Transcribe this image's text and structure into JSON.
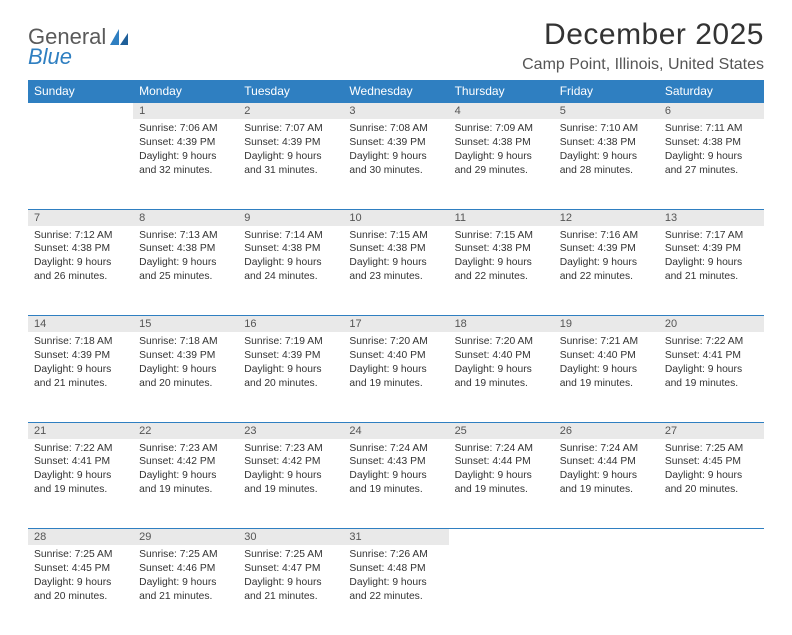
{
  "logo": {
    "word1": "General",
    "word2": "Blue"
  },
  "title": "December 2025",
  "location": "Camp Point, Illinois, United States",
  "header_bg": "#2f7fc1",
  "daynum_bg": "#e9e9e9",
  "border_color": "#2f7fc1",
  "days_of_week": [
    "Sunday",
    "Monday",
    "Tuesday",
    "Wednesday",
    "Thursday",
    "Friday",
    "Saturday"
  ],
  "first_weekday_index": 1,
  "days": [
    {
      "n": 1,
      "sr": "7:06 AM",
      "ss": "4:39 PM",
      "dl": "9 hours and 32 minutes."
    },
    {
      "n": 2,
      "sr": "7:07 AM",
      "ss": "4:39 PM",
      "dl": "9 hours and 31 minutes."
    },
    {
      "n": 3,
      "sr": "7:08 AM",
      "ss": "4:39 PM",
      "dl": "9 hours and 30 minutes."
    },
    {
      "n": 4,
      "sr": "7:09 AM",
      "ss": "4:38 PM",
      "dl": "9 hours and 29 minutes."
    },
    {
      "n": 5,
      "sr": "7:10 AM",
      "ss": "4:38 PM",
      "dl": "9 hours and 28 minutes."
    },
    {
      "n": 6,
      "sr": "7:11 AM",
      "ss": "4:38 PM",
      "dl": "9 hours and 27 minutes."
    },
    {
      "n": 7,
      "sr": "7:12 AM",
      "ss": "4:38 PM",
      "dl": "9 hours and 26 minutes."
    },
    {
      "n": 8,
      "sr": "7:13 AM",
      "ss": "4:38 PM",
      "dl": "9 hours and 25 minutes."
    },
    {
      "n": 9,
      "sr": "7:14 AM",
      "ss": "4:38 PM",
      "dl": "9 hours and 24 minutes."
    },
    {
      "n": 10,
      "sr": "7:15 AM",
      "ss": "4:38 PM",
      "dl": "9 hours and 23 minutes."
    },
    {
      "n": 11,
      "sr": "7:15 AM",
      "ss": "4:38 PM",
      "dl": "9 hours and 22 minutes."
    },
    {
      "n": 12,
      "sr": "7:16 AM",
      "ss": "4:39 PM",
      "dl": "9 hours and 22 minutes."
    },
    {
      "n": 13,
      "sr": "7:17 AM",
      "ss": "4:39 PM",
      "dl": "9 hours and 21 minutes."
    },
    {
      "n": 14,
      "sr": "7:18 AM",
      "ss": "4:39 PM",
      "dl": "9 hours and 21 minutes."
    },
    {
      "n": 15,
      "sr": "7:18 AM",
      "ss": "4:39 PM",
      "dl": "9 hours and 20 minutes."
    },
    {
      "n": 16,
      "sr": "7:19 AM",
      "ss": "4:39 PM",
      "dl": "9 hours and 20 minutes."
    },
    {
      "n": 17,
      "sr": "7:20 AM",
      "ss": "4:40 PM",
      "dl": "9 hours and 19 minutes."
    },
    {
      "n": 18,
      "sr": "7:20 AM",
      "ss": "4:40 PM",
      "dl": "9 hours and 19 minutes."
    },
    {
      "n": 19,
      "sr": "7:21 AM",
      "ss": "4:40 PM",
      "dl": "9 hours and 19 minutes."
    },
    {
      "n": 20,
      "sr": "7:22 AM",
      "ss": "4:41 PM",
      "dl": "9 hours and 19 minutes."
    },
    {
      "n": 21,
      "sr": "7:22 AM",
      "ss": "4:41 PM",
      "dl": "9 hours and 19 minutes."
    },
    {
      "n": 22,
      "sr": "7:23 AM",
      "ss": "4:42 PM",
      "dl": "9 hours and 19 minutes."
    },
    {
      "n": 23,
      "sr": "7:23 AM",
      "ss": "4:42 PM",
      "dl": "9 hours and 19 minutes."
    },
    {
      "n": 24,
      "sr": "7:24 AM",
      "ss": "4:43 PM",
      "dl": "9 hours and 19 minutes."
    },
    {
      "n": 25,
      "sr": "7:24 AM",
      "ss": "4:44 PM",
      "dl": "9 hours and 19 minutes."
    },
    {
      "n": 26,
      "sr": "7:24 AM",
      "ss": "4:44 PM",
      "dl": "9 hours and 19 minutes."
    },
    {
      "n": 27,
      "sr": "7:25 AM",
      "ss": "4:45 PM",
      "dl": "9 hours and 20 minutes."
    },
    {
      "n": 28,
      "sr": "7:25 AM",
      "ss": "4:45 PM",
      "dl": "9 hours and 20 minutes."
    },
    {
      "n": 29,
      "sr": "7:25 AM",
      "ss": "4:46 PM",
      "dl": "9 hours and 21 minutes."
    },
    {
      "n": 30,
      "sr": "7:25 AM",
      "ss": "4:47 PM",
      "dl": "9 hours and 21 minutes."
    },
    {
      "n": 31,
      "sr": "7:26 AM",
      "ss": "4:48 PM",
      "dl": "9 hours and 22 minutes."
    }
  ],
  "labels": {
    "sunrise": "Sunrise:",
    "sunset": "Sunset:",
    "daylight": "Daylight:"
  }
}
